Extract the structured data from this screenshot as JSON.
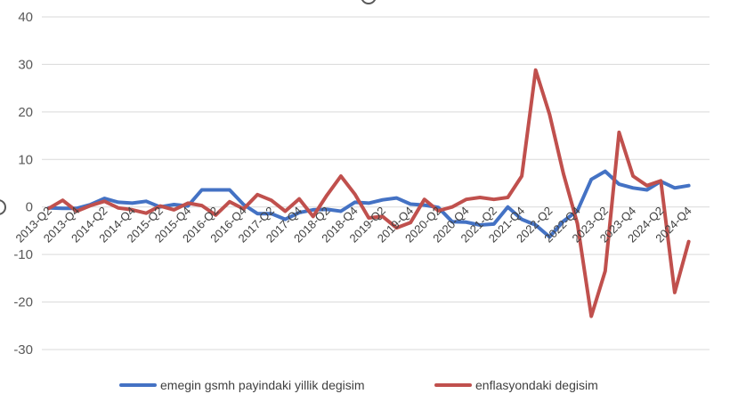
{
  "chart_data": {
    "type": "line",
    "ylim": [
      -30,
      40
    ],
    "y_ticks": [
      -30,
      -20,
      -10,
      0,
      10,
      20,
      30,
      40
    ],
    "grid": "horizontal",
    "legend_position": "bottom",
    "x": [
      "2013-Q2",
      "2013-Q3",
      "2013-Q4",
      "2014-Q1",
      "2014-Q2",
      "2014-Q3",
      "2014-Q4",
      "2015-Q1",
      "2015-Q2",
      "2015-Q3",
      "2015-Q4",
      "2016-Q1",
      "2016-Q2",
      "2016-Q3",
      "2016-Q4",
      "2017-Q1",
      "2017-Q2",
      "2017-Q3",
      "2017-Q4",
      "2018-Q1",
      "2018-Q2",
      "2018-Q3",
      "2018-Q4",
      "2019-Q1",
      "2019-Q2",
      "2019-Q3",
      "2019-Q4",
      "2020-Q1",
      "2020-Q2",
      "2020-Q3",
      "2020-Q4",
      "2021-Q1",
      "2021-Q2",
      "2021-Q3",
      "2021-Q4",
      "2022-Q1",
      "2022-Q2",
      "2022-Q3",
      "2022-Q4",
      "2023-Q1",
      "2023-Q2",
      "2023-Q3",
      "2023-Q4",
      "2024-Q1",
      "2024-Q2",
      "2024-Q3",
      "2024-Q4",
      "2025-Q1"
    ],
    "x_tick_labels": [
      "2013-Q2",
      "2013-Q4",
      "2014-Q2",
      "2014-Q4",
      "2015-Q2",
      "2015-Q4",
      "2016-Q2",
      "2016-Q4",
      "2017-Q2",
      "2017-Q4",
      "2018-Q2",
      "2018-Q4",
      "2019-Q2",
      "2019-Q4",
      "2020-Q2",
      "2020-Q4",
      "2021-Q2",
      "2021-Q4",
      "2022-Q2",
      "2022-Q4",
      "2023-Q2",
      "2023-Q4",
      "2024-Q2",
      "2024-Q4"
    ],
    "series": [
      {
        "name": "emegin gsmh payindaki yillik degisim",
        "color": "#4472c4",
        "values": [
          -0.2,
          -0.3,
          -0.3,
          0.5,
          1.8,
          1.0,
          0.8,
          1.2,
          0.0,
          0.5,
          0.2,
          3.6,
          3.6,
          3.6,
          0.5,
          -1.4,
          -1.4,
          -2.6,
          -1.2,
          -0.6,
          -0.5,
          -0.9,
          1.0,
          0.8,
          1.5,
          1.9,
          0.6,
          0.4,
          -0.1,
          -3.1,
          -3.2,
          -3.8,
          -3.6,
          0.0,
          -2.6,
          -3.8,
          -6.3,
          -3.0,
          -0.8,
          5.8,
          7.5,
          4.8,
          4.0,
          3.6,
          5.4,
          4.0,
          4.5,
          null
        ]
      },
      {
        "name": "enflasyondaki degisim",
        "color": "#c0504d",
        "values": [
          -0.3,
          1.4,
          -0.9,
          0.3,
          1.2,
          -0.2,
          -0.6,
          -1.3,
          0.2,
          -0.6,
          0.8,
          0.3,
          -1.7,
          1.1,
          -0.4,
          2.6,
          1.4,
          -0.9,
          1.7,
          -2.0,
          2.5,
          6.5,
          2.7,
          -2.3,
          -2.0,
          -4.4,
          -3.3,
          1.6,
          -0.8,
          0.0,
          1.6,
          2.0,
          1.6,
          2.0,
          6.5,
          28.8,
          19.5,
          7.0,
          -3.5,
          -23.0,
          -13.5,
          15.7,
          6.5,
          4.5,
          5.5,
          -18.0,
          -7.3,
          null
        ]
      }
    ]
  }
}
